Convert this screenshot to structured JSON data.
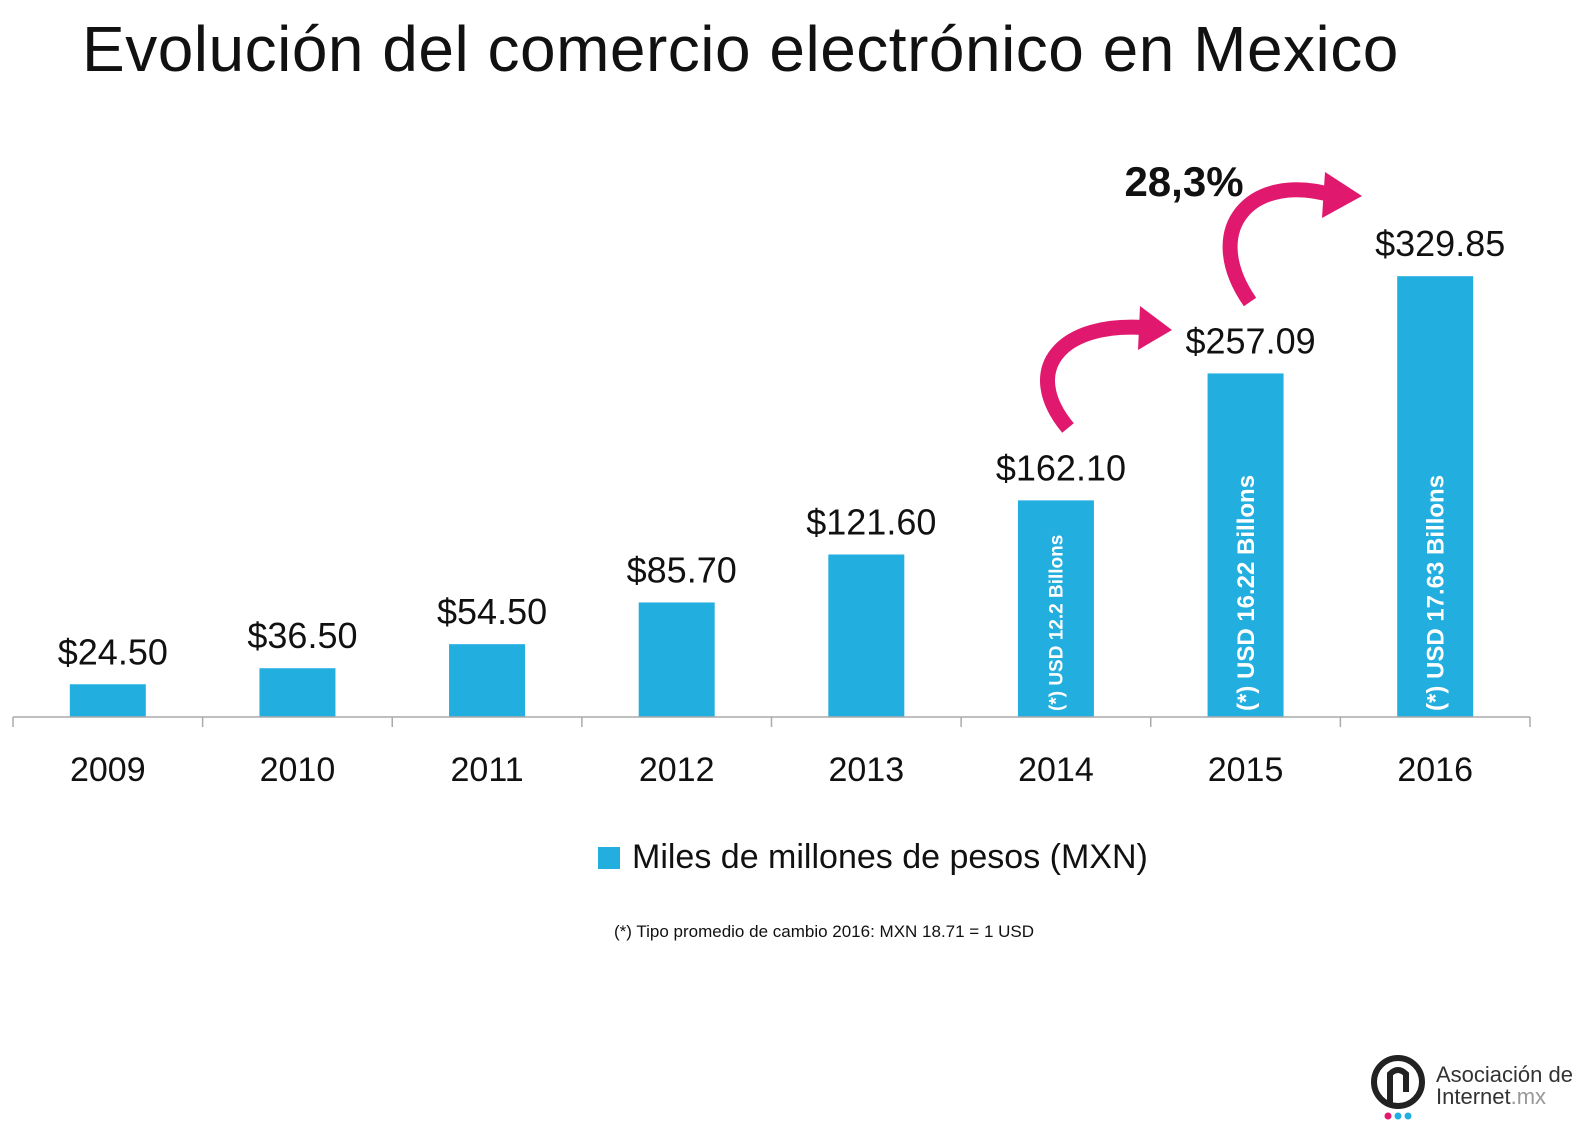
{
  "title": "Evolución del comercio electrónico en Mexico",
  "chart_data": {
    "type": "bar",
    "title": "Evolución del comercio electrónico en Mexico",
    "categories": [
      "2009",
      "2010",
      "2011",
      "2012",
      "2013",
      "2014",
      "2015",
      "2016"
    ],
    "values": [
      24.5,
      36.5,
      54.5,
      85.7,
      121.6,
      162.1,
      257.09,
      329.85
    ],
    "value_labels": [
      "$24.50",
      "$36.50",
      "$54.50",
      "$85.70",
      "$121.60",
      "$162.10",
      "$257.09",
      "$329.85"
    ],
    "bar_inner_labels": [
      "",
      "",
      "",
      "",
      "",
      "(*) USD 12.2 Billons",
      "(*) USD 16.22 Billons",
      "(*) USD 17.63 Billons"
    ],
    "series_name": "Miles de millones de pesos (MXN)",
    "ylim": [
      0,
      330
    ],
    "annotation": "28,3%",
    "bar_color": "#23AEE0",
    "arrow_color": "#E0196E",
    "legend_position": "bottom"
  },
  "legend": {
    "label": "Miles de millones de pesos (MXN)",
    "color": "#23AEE0"
  },
  "footnote": "(*) Tipo promedio de cambio 2016: MXN 18.71 = 1 USD",
  "logo": {
    "line1": "Asociación de",
    "line2_main": "Internet",
    "line2_suffix": ".mx"
  }
}
